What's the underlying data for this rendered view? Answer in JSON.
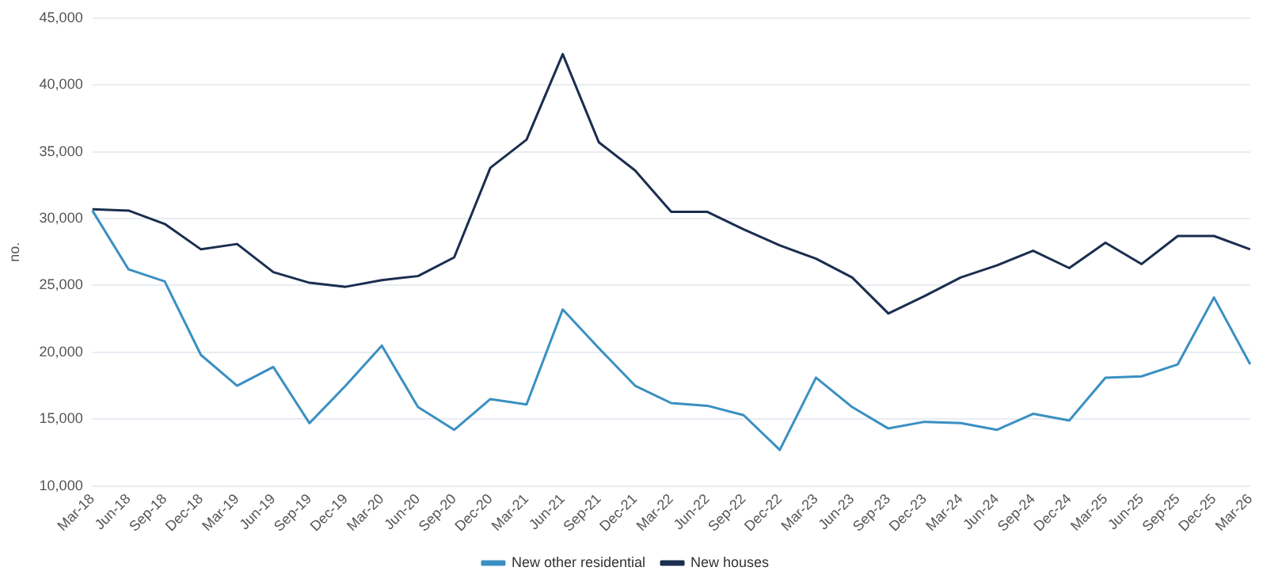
{
  "chart_data": {
    "type": "line",
    "ylabel": "no.",
    "categories": [
      "Mar-18",
      "Jun-18",
      "Sep-18",
      "Dec-18",
      "Mar-19",
      "Jun-19",
      "Sep-19",
      "Dec-19",
      "Mar-20",
      "Jun-20",
      "Sep-20",
      "Dec-20",
      "Mar-21",
      "Jun-21",
      "Sep-21",
      "Dec-21",
      "Mar-22",
      "Jun-22",
      "Sep-22",
      "Dec-22",
      "Mar-23",
      "Jun-23",
      "Sep-23",
      "Dec-23",
      "Mar-24",
      "Jun-24",
      "Sep-24",
      "Dec-24",
      "Mar-25",
      "Jun-25",
      "Sep-25",
      "Dec-25",
      "Mar-26"
    ],
    "series": [
      {
        "name": "New other residential",
        "color": "#3a90c2",
        "values": [
          30600,
          26200,
          25300,
          19800,
          17500,
          18900,
          14700,
          17500,
          20500,
          15900,
          14200,
          16500,
          16100,
          23200,
          20300,
          17500,
          16200,
          16000,
          15300,
          12700,
          18100,
          15900,
          14300,
          14800,
          14700,
          14200,
          15400,
          14900,
          18100,
          18200,
          19100,
          24100,
          19100
        ]
      },
      {
        "name": "New houses",
        "color": "#1a2e4f",
        "values": [
          30700,
          30600,
          29600,
          27700,
          28100,
          26000,
          25200,
          24900,
          25400,
          25700,
          27100,
          33800,
          35900,
          42300,
          35700,
          33600,
          30500,
          30500,
          29200,
          28000,
          27000,
          25600,
          22900,
          24200,
          25600,
          26500,
          27600,
          26300,
          28200,
          26600,
          28700,
          28700,
          27700
        ]
      }
    ],
    "ylim": [
      10000,
      45000
    ],
    "yticks": [
      {
        "value": 10000,
        "label": "10,000"
      },
      {
        "value": 15000,
        "label": "15,000"
      },
      {
        "value": 20000,
        "label": "20,000"
      },
      {
        "value": 25000,
        "label": "25,000"
      },
      {
        "value": 30000,
        "label": "30,000"
      },
      {
        "value": 35000,
        "label": "35,000"
      },
      {
        "value": 40000,
        "label": "40,000"
      },
      {
        "value": 45000,
        "label": "45,000"
      }
    ],
    "grid": "y",
    "legend": "bottom",
    "marker": "none",
    "line_style": "solid"
  }
}
